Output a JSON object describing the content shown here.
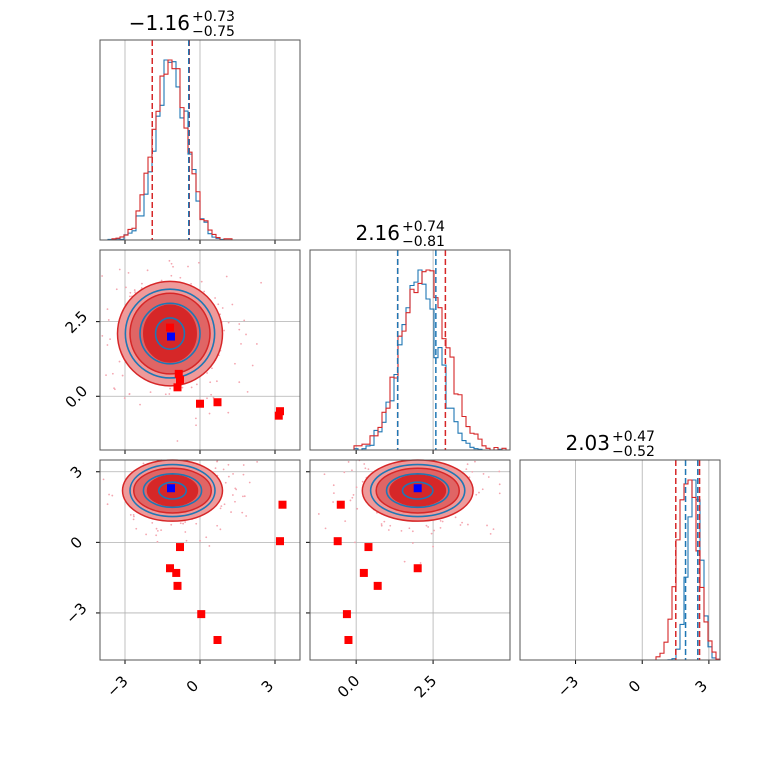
{
  "figure": {
    "type": "corner-plot"
  },
  "colors": {
    "blue": "#1f77b4",
    "red": "#d62728",
    "red_fill_dark": "#d62728",
    "red_fill_light": "#ef9a9a",
    "marker_red": "#ff0000",
    "marker_blue": "#0000ff",
    "grid": "#b0b0b0",
    "axes": "#000000"
  },
  "chart_data": [
    {
      "type": "histogram",
      "panel": "1d-param-0",
      "title": {
        "base": "−1.16",
        "plus": "+0.73",
        "minus": "−0.75"
      },
      "xlim": [
        -4.0,
        4.0
      ],
      "xticks": [
        -3,
        0,
        3
      ],
      "xtick_labels": [
        "−3",
        "0",
        "3"
      ],
      "show_xtick_labels": false,
      "grid": true,
      "series": [
        {
          "color": "blue",
          "mean": -1.16,
          "sd": 0.62
        },
        {
          "color": "red",
          "mean": -1.2,
          "sd": 0.66
        }
      ],
      "vlines": [
        {
          "x": -1.91,
          "color": "red"
        },
        {
          "x": -0.43,
          "color": "red"
        },
        {
          "x": -0.45,
          "color": "blue"
        }
      ]
    },
    {
      "type": "histogram",
      "panel": "1d-param-1",
      "title": {
        "base": "2.16",
        "plus": "+0.74",
        "minus": "−0.81"
      },
      "xlim": [
        -1.5,
        5.0
      ],
      "xticks": [
        0.0,
        2.5
      ],
      "xtick_labels": [
        "0.0",
        "2.5"
      ],
      "show_xtick_labels": false,
      "grid": true,
      "series": [
        {
          "color": "blue",
          "mean": 2.05,
          "sd": 0.6
        },
        {
          "color": "red",
          "mean": 2.2,
          "sd": 0.72
        }
      ],
      "vlines": [
        {
          "x": 1.35,
          "color": "red"
        },
        {
          "x": 1.35,
          "color": "blue"
        },
        {
          "x": 2.59,
          "color": "blue"
        },
        {
          "x": 2.9,
          "color": "red"
        }
      ]
    },
    {
      "type": "histogram",
      "panel": "1d-param-2",
      "title": {
        "base": "2.03",
        "plus": "+0.47",
        "minus": "−0.52"
      },
      "xlim": [
        -5.5,
        3.5
      ],
      "xticks": [
        -3,
        0,
        3
      ],
      "xtick_labels": [
        "−3",
        "0",
        "3"
      ],
      "show_xtick_labels": true,
      "grid": true,
      "series": [
        {
          "color": "blue",
          "mean": 2.35,
          "sd": 0.3
        },
        {
          "color": "red",
          "mean": 2.05,
          "sd": 0.45
        }
      ],
      "vlines": [
        {
          "x": 1.51,
          "color": "red"
        },
        {
          "x": 1.95,
          "color": "blue"
        },
        {
          "x": 2.5,
          "color": "blue"
        },
        {
          "x": 2.58,
          "color": "red"
        }
      ]
    },
    {
      "type": "scatter",
      "panel": "2d-param-0-vs-param-1",
      "xlim": [
        -4.0,
        4.0
      ],
      "ylim": [
        -1.8,
        4.9
      ],
      "xticks": [
        -3,
        0,
        3
      ],
      "yticks": [
        0.0,
        2.5
      ],
      "ytick_labels": [
        "0.0",
        "2.5"
      ],
      "show_xtick_labels": false,
      "show_ytick_labels": true,
      "grid": true,
      "blue_marker": {
        "x": -1.16,
        "y": 2.0
      },
      "contours": [
        {
          "cx": -1.2,
          "cy": 2.1,
          "rx": 2.1,
          "ry": 1.75
        },
        {
          "cx": -1.2,
          "cy": 2.1,
          "rx": 1.6,
          "ry": 1.35
        },
        {
          "cx": -1.2,
          "cy": 2.1,
          "rx": 1.05,
          "ry": 0.95
        }
      ],
      "red_points": [
        {
          "x": -1.2,
          "y": 2.3
        },
        {
          "x": -0.85,
          "y": 0.75
        },
        {
          "x": -0.8,
          "y": 0.55
        },
        {
          "x": -0.9,
          "y": 0.3
        },
        {
          "x": 0.0,
          "y": -0.25
        },
        {
          "x": 0.7,
          "y": -0.2
        },
        {
          "x": 3.15,
          "y": -0.65
        },
        {
          "x": 3.2,
          "y": -0.5
        }
      ]
    },
    {
      "type": "scatter",
      "panel": "2d-param-0-vs-param-2",
      "xlim": [
        -4.0,
        4.0
      ],
      "ylim": [
        -5.0,
        3.5
      ],
      "xticks": [
        -3,
        0,
        3
      ],
      "xtick_labels": [
        "−3",
        "0",
        "3"
      ],
      "yticks": [
        -3,
        0,
        3
      ],
      "ytick_labels": [
        "−3",
        "0",
        "3"
      ],
      "show_xtick_labels": true,
      "show_ytick_labels": true,
      "grid": true,
      "blue_marker": {
        "x": -1.16,
        "y": 2.3
      },
      "contours": [
        {
          "cx": -1.1,
          "cy": 2.2,
          "rx": 2.0,
          "ry": 1.3
        },
        {
          "cx": -1.1,
          "cy": 2.2,
          "rx": 1.55,
          "ry": 0.95
        },
        {
          "cx": -1.1,
          "cy": 2.2,
          "rx": 1.0,
          "ry": 0.65
        }
      ],
      "red_points": [
        {
          "x": -0.8,
          "y": -0.2
        },
        {
          "x": -1.2,
          "y": -1.1
        },
        {
          "x": -0.95,
          "y": -1.3
        },
        {
          "x": -0.9,
          "y": -1.85
        },
        {
          "x": 0.05,
          "y": -3.05
        },
        {
          "x": 0.7,
          "y": -4.15
        },
        {
          "x": 3.2,
          "y": 0.05
        },
        {
          "x": 3.3,
          "y": 1.6
        }
      ]
    },
    {
      "type": "scatter",
      "panel": "2d-param-1-vs-param-2",
      "xlim": [
        -1.5,
        5.0
      ],
      "ylim": [
        -5.0,
        3.5
      ],
      "xticks": [
        0.0,
        2.5
      ],
      "xtick_labels": [
        "0.0",
        "2.5"
      ],
      "yticks": [
        -3,
        0,
        3
      ],
      "show_xtick_labels": true,
      "show_ytick_labels": false,
      "grid": true,
      "blue_marker": {
        "x": 2.0,
        "y": 2.3
      },
      "contours": [
        {
          "cx": 2.0,
          "cy": 2.2,
          "rx": 1.8,
          "ry": 1.3
        },
        {
          "cx": 2.0,
          "cy": 2.2,
          "rx": 1.35,
          "ry": 0.95
        },
        {
          "cx": 2.0,
          "cy": 2.2,
          "rx": 0.9,
          "ry": 0.65
        }
      ],
      "red_points": [
        {
          "x": -0.5,
          "y": 1.6
        },
        {
          "x": -0.6,
          "y": 0.05
        },
        {
          "x": 0.4,
          "y": -0.2
        },
        {
          "x": 0.25,
          "y": -1.3
        },
        {
          "x": 0.7,
          "y": -1.85
        },
        {
          "x": 2.0,
          "y": -1.1
        },
        {
          "x": -0.3,
          "y": -3.05
        },
        {
          "x": -0.25,
          "y": -4.15
        }
      ]
    }
  ]
}
